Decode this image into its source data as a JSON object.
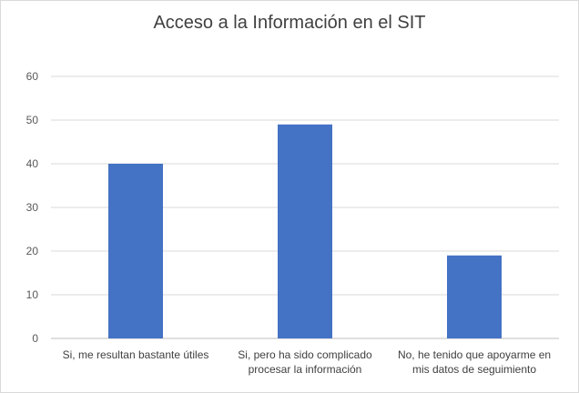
{
  "chart_data": {
    "type": "bar",
    "title": "Acceso a la Información en el SIT",
    "categories": [
      [
        "Si, me resultan bastante útiles"
      ],
      [
        "Si, pero ha sido complicado",
        "procesar la información"
      ],
      [
        "No, he tenido que apoyarme en",
        "mis datos de seguimiento"
      ]
    ],
    "values": [
      40,
      49,
      19
    ],
    "ylim": [
      0,
      60
    ],
    "yticks": [
      0,
      10,
      20,
      30,
      40,
      50,
      60
    ],
    "grid": true,
    "bar_color": "#4472C4"
  }
}
